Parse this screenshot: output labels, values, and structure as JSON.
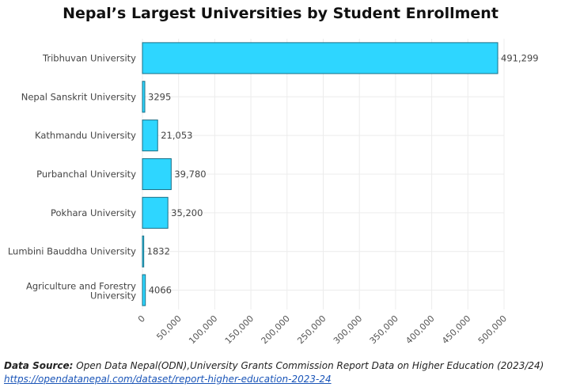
{
  "chart_data": {
    "type": "bar",
    "orientation": "horizontal",
    "title": "Nepal’s Largest Universities by Student Enrollment",
    "categories": [
      "Tribhuvan University",
      "Nepal Sanskrit University",
      "Kathmandu University",
      "Purbanchal University",
      "Pokhara University",
      "Lumbini Bauddha University",
      "Agriculture and Forestry University"
    ],
    "values": [
      491299,
      3295,
      21053,
      39780,
      35200,
      1832,
      4066
    ],
    "value_labels": [
      "491,299",
      "3295",
      "21,053",
      "39,780",
      "35,200",
      "1832",
      "4066"
    ],
    "x_ticks": [
      "0",
      "50,000",
      "100,000",
      "150,000",
      "200,000",
      "250,000",
      "300,000",
      "350,000",
      "400,000",
      "450,000",
      "500,000"
    ],
    "xlim": [
      0,
      500000
    ],
    "bar_color": "#2ed6ff",
    "bar_edge_color": "#1a6f86",
    "grid": true
  },
  "source": {
    "label": "Data Source:",
    "text": "Open Data Nepal(ODN),",
    "text2": "University Grants Commission Report Data on Higher Education (2023/24)",
    "url": "https://opendatanepal.com/dataset/report-higher-education-2023-24"
  }
}
